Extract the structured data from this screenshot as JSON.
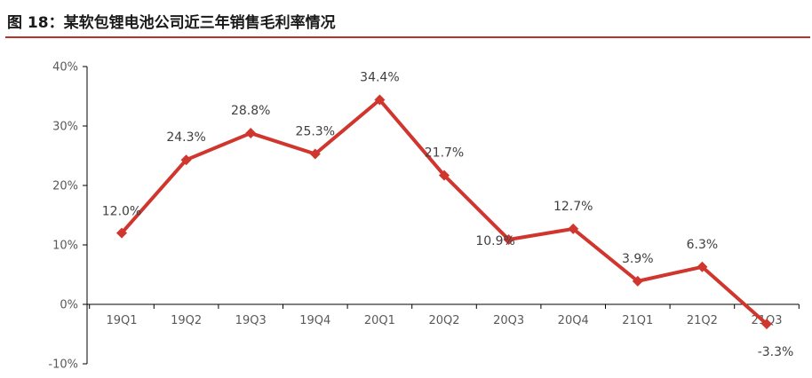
{
  "figure": {
    "title": "图 18：某软包锂电池公司近三年销售毛利率情况"
  },
  "colors": {
    "accent_rule": "#b8342a",
    "series_line": "#d0352e",
    "axis": "#000000",
    "text": "#595959"
  },
  "chart_data": {
    "type": "line",
    "title": "",
    "xlabel": "",
    "ylabel": "",
    "categories": [
      "19Q1",
      "19Q2",
      "19Q3",
      "19Q4",
      "20Q1",
      "20Q2",
      "20Q3",
      "20Q4",
      "21Q1",
      "21Q2",
      "21Q3"
    ],
    "series": [
      {
        "values": [
          12.0,
          24.3,
          28.8,
          25.3,
          34.4,
          21.7,
          10.9,
          12.7,
          3.9,
          6.3,
          -3.3
        ],
        "labels": [
          "12.0%",
          "24.3%",
          "28.8%",
          "25.3%",
          "34.4%",
          "21.7%",
          "10.9%",
          "12.7%",
          "3.9%",
          "6.3%",
          "-3.3%"
        ]
      }
    ],
    "ylim": [
      -10,
      40
    ],
    "yticks": [
      -10,
      0,
      10,
      20,
      30,
      40
    ],
    "ytick_labels": [
      "-10%",
      "0%",
      "10%",
      "20%",
      "30%",
      "40%"
    ],
    "grid": false,
    "legend": "none",
    "marker": "diamond"
  }
}
